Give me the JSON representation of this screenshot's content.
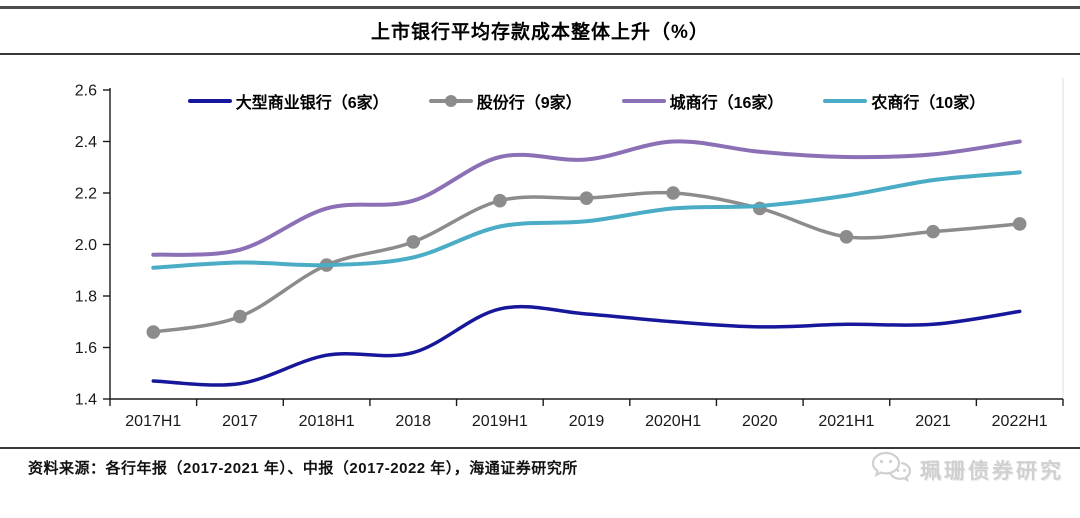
{
  "title": "上市银行平均存款成本整体上升（%）",
  "source_note": "资料来源：各行年报（2017-2021 年）、中报（2017-2022 年），海通证券研究所",
  "watermark": {
    "text": "珮珊债券研究",
    "icon": "wechat-bubbles-icon",
    "color": "#d0d0d0"
  },
  "chart_data": {
    "type": "line",
    "title": "上市银行平均存款成本整体上升（%）",
    "xlabel": "",
    "ylabel": "",
    "grid": false,
    "legend_position": "top",
    "smooth_lines": true,
    "categories": [
      "2017H1",
      "2017",
      "2018H1",
      "2018",
      "2019H1",
      "2019",
      "2020H1",
      "2020",
      "2021H1",
      "2021",
      "2022H1"
    ],
    "ylim": [
      1.4,
      2.6
    ],
    "ytick_step": 0.2,
    "yticks": [
      "1.4",
      "1.6",
      "1.8",
      "2.0",
      "2.2",
      "2.4",
      "2.6"
    ],
    "series": [
      {
        "id": "large-commercial-banks",
        "name": "大型商业银行（6家）",
        "color": "#17179B",
        "marker": false,
        "width": 3.5,
        "values": [
          1.47,
          1.46,
          1.57,
          1.58,
          1.75,
          1.73,
          1.7,
          1.68,
          1.69,
          1.69,
          1.74
        ]
      },
      {
        "id": "joint-stock-banks",
        "name": "股份行（9家）",
        "color": "#8C8C8C",
        "marker": true,
        "width": 3.5,
        "values": [
          1.66,
          1.72,
          1.92,
          2.01,
          2.17,
          2.18,
          2.2,
          2.14,
          2.03,
          2.05,
          2.08
        ]
      },
      {
        "id": "city-commercial-banks",
        "name": "城商行（16家）",
        "color": "#8B70B6",
        "marker": false,
        "width": 4,
        "values": [
          1.96,
          1.98,
          2.14,
          2.17,
          2.34,
          2.33,
          2.4,
          2.36,
          2.34,
          2.35,
          2.4
        ]
      },
      {
        "id": "rural-commercial-banks",
        "name": "农商行（10家）",
        "color": "#4BACC6",
        "marker": false,
        "width": 4,
        "values": [
          1.91,
          1.93,
          1.92,
          1.95,
          2.07,
          2.09,
          2.14,
          2.15,
          2.19,
          2.25,
          2.28
        ]
      }
    ]
  }
}
